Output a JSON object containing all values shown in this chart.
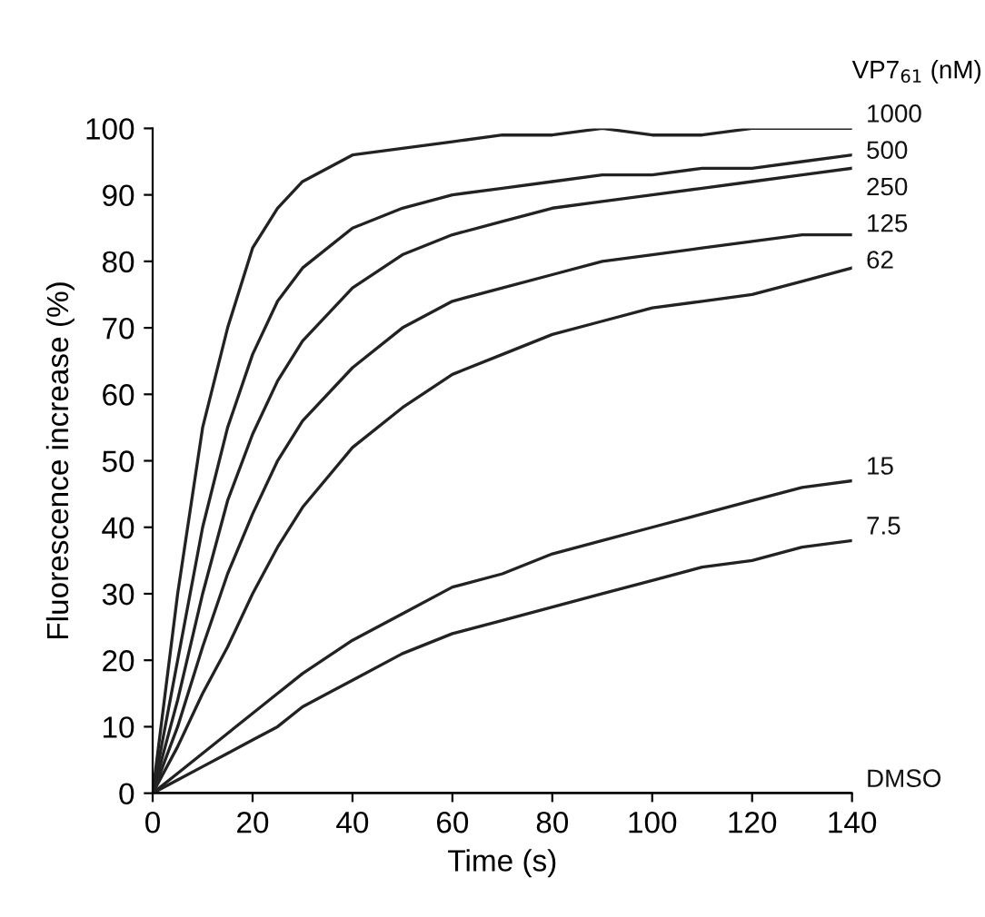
{
  "chart_data": {
    "type": "line",
    "xlabel": "Time (s)",
    "ylabel": "Fluorescence increase (%)",
    "legend_title": "VP7$_{61}$ (nM)",
    "x": [
      0,
      5,
      10,
      15,
      20,
      25,
      30,
      40,
      50,
      60,
      70,
      80,
      90,
      100,
      110,
      120,
      130,
      140
    ],
    "xlim": [
      0,
      140
    ],
    "xticks": [
      0,
      20,
      40,
      60,
      80,
      100,
      120,
      140
    ],
    "ylim": [
      0,
      100
    ],
    "yticks": [
      0,
      10,
      20,
      30,
      40,
      50,
      60,
      70,
      80,
      90,
      100
    ],
    "grid": false,
    "legend": false,
    "marker": "none",
    "line_style": "solid",
    "series": [
      {
        "name": "1000",
        "color": "#222222",
        "values": [
          0,
          30,
          55,
          70,
          82,
          88,
          92,
          96,
          97,
          98,
          99,
          99,
          100,
          99,
          99,
          100,
          100,
          100
        ]
      },
      {
        "name": "500",
        "color": "#222222",
        "values": [
          0,
          20,
          40,
          55,
          66,
          74,
          79,
          85,
          88,
          90,
          91,
          92,
          93,
          93,
          94,
          94,
          95,
          96
        ]
      },
      {
        "name": "250",
        "color": "#222222",
        "values": [
          0,
          14,
          30,
          44,
          54,
          62,
          68,
          76,
          81,
          84,
          86,
          88,
          89,
          90,
          91,
          92,
          93,
          94
        ]
      },
      {
        "name": "125",
        "color": "#222222",
        "values": [
          0,
          10,
          22,
          33,
          42,
          50,
          56,
          64,
          70,
          74,
          76,
          78,
          80,
          81,
          82,
          83,
          84,
          84
        ]
      },
      {
        "name": "62",
        "color": "#222222",
        "values": [
          0,
          7,
          15,
          22,
          30,
          37,
          43,
          52,
          58,
          63,
          66,
          69,
          71,
          73,
          74,
          75,
          77,
          79
        ]
      },
      {
        "name": "15",
        "color": "#222222",
        "values": [
          0,
          3,
          6,
          9,
          12,
          15,
          18,
          23,
          27,
          31,
          33,
          36,
          38,
          40,
          42,
          44,
          46,
          47
        ]
      },
      {
        "name": "7.5",
        "color": "#222222",
        "values": [
          0,
          2,
          4,
          6,
          8,
          10,
          13,
          17,
          21,
          24,
          26,
          28,
          30,
          32,
          34,
          35,
          37,
          38
        ]
      },
      {
        "name": "DMSO",
        "color": "#222222",
        "values": [
          0,
          0,
          0,
          0,
          0,
          0,
          0,
          0,
          0,
          0,
          0,
          0,
          0,
          0,
          0,
          0,
          0,
          0
        ]
      }
    ]
  }
}
